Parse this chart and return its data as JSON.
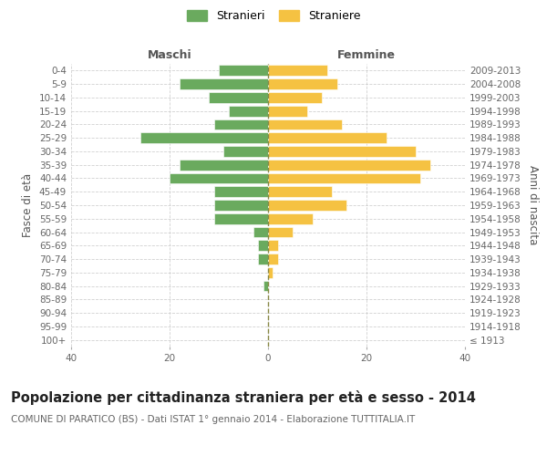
{
  "age_groups": [
    "100+",
    "95-99",
    "90-94",
    "85-89",
    "80-84",
    "75-79",
    "70-74",
    "65-69",
    "60-64",
    "55-59",
    "50-54",
    "45-49",
    "40-44",
    "35-39",
    "30-34",
    "25-29",
    "20-24",
    "15-19",
    "10-14",
    "5-9",
    "0-4"
  ],
  "birth_years": [
    "≤ 1913",
    "1914-1918",
    "1919-1923",
    "1924-1928",
    "1929-1933",
    "1934-1938",
    "1939-1943",
    "1944-1948",
    "1949-1953",
    "1954-1958",
    "1959-1963",
    "1964-1968",
    "1969-1973",
    "1974-1978",
    "1979-1983",
    "1984-1988",
    "1989-1993",
    "1994-1998",
    "1999-2003",
    "2004-2008",
    "2009-2013"
  ],
  "maschi": [
    0,
    0,
    0,
    0,
    1,
    0,
    2,
    2,
    3,
    11,
    11,
    11,
    20,
    18,
    9,
    26,
    11,
    8,
    12,
    18,
    10
  ],
  "femmine": [
    0,
    0,
    0,
    0,
    0,
    1,
    2,
    2,
    5,
    9,
    16,
    13,
    31,
    33,
    30,
    24,
    15,
    8,
    11,
    14,
    12
  ],
  "maschi_color": "#6aaa5e",
  "femmine_color": "#f5c242",
  "grid_color": "#cccccc",
  "center_line_color": "#888844",
  "title": "Popolazione per cittadinanza straniera per età e sesso - 2014",
  "subtitle": "COMUNE DI PARATICO (BS) - Dati ISTAT 1° gennaio 2014 - Elaborazione TUTTITALIA.IT",
  "label_maschi": "Maschi",
  "label_femmine": "Femmine",
  "ylabel_left": "Fasce di età",
  "ylabel_right": "Anni di nascita",
  "legend_maschi": "Stranieri",
  "legend_femmine": "Straniere",
  "xlim": 40,
  "title_fontsize": 10.5,
  "subtitle_fontsize": 7.5,
  "tick_fontsize": 7.5,
  "axis_label_fontsize": 8.5,
  "section_label_fontsize": 9,
  "legend_fontsize": 9
}
